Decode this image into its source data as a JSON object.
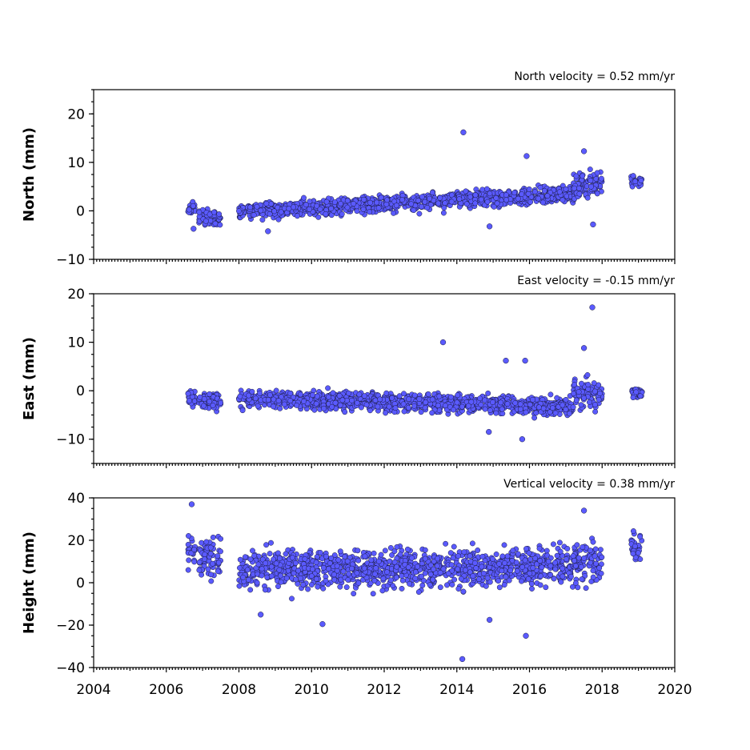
{
  "chart_data": [
    {
      "type": "scatter",
      "panel": "north",
      "ylabel": "North (mm)",
      "velocity_label": "North velocity = 0.52 mm/yr",
      "xlim": [
        2004,
        2020
      ],
      "ylim": [
        -10,
        25
      ],
      "yticks": [
        -10,
        0,
        10,
        20
      ],
      "ytick_labels": [
        "−10",
        "0",
        "10",
        "20"
      ],
      "segments": [
        {
          "x_start": 2006.6,
          "x_end": 2006.8,
          "y_start": 0.5,
          "y_end": 0.5,
          "spread": 1.3
        },
        {
          "x_start": 2006.9,
          "x_end": 2007.5,
          "y_start": -1.5,
          "y_end": -1.5,
          "spread": 1.2
        },
        {
          "x_start": 2008.0,
          "x_end": 2017.2,
          "y_start": 0.0,
          "y_end": 3.5,
          "spread": 1.2
        },
        {
          "x_start": 2017.2,
          "x_end": 2018.0,
          "y_start": 4.5,
          "y_end": 6.0,
          "spread": 2.0
        },
        {
          "x_start": 2018.8,
          "x_end": 2019.1,
          "y_start": 6.2,
          "y_end": 6.2,
          "spread": 0.8
        }
      ],
      "outliers": [
        {
          "x": 2014.18,
          "y": 16.2
        },
        {
          "x": 2015.92,
          "y": 11.3
        },
        {
          "x": 2014.9,
          "y": -3.2
        },
        {
          "x": 2017.5,
          "y": 12.3
        },
        {
          "x": 2017.75,
          "y": -2.8
        },
        {
          "x": 2006.75,
          "y": -3.7
        },
        {
          "x": 2008.8,
          "y": -4.2
        }
      ]
    },
    {
      "type": "scatter",
      "panel": "east",
      "ylabel": "East (mm)",
      "velocity_label": "East velocity = -0.15 mm/yr",
      "xlim": [
        2004,
        2020
      ],
      "ylim": [
        -15,
        20
      ],
      "yticks": [
        -10,
        0,
        10,
        20
      ],
      "ytick_labels": [
        "−10",
        "0",
        "10",
        "20"
      ],
      "segments": [
        {
          "x_start": 2006.6,
          "x_end": 2006.8,
          "y_start": -1.5,
          "y_end": -1.5,
          "spread": 1.2
        },
        {
          "x_start": 2006.9,
          "x_end": 2007.5,
          "y_start": -2.0,
          "y_end": -2.0,
          "spread": 1.3
        },
        {
          "x_start": 2008.0,
          "x_end": 2017.2,
          "y_start": -1.5,
          "y_end": -3.2,
          "spread": 1.3
        },
        {
          "x_start": 2017.2,
          "x_end": 2018.0,
          "y_start": -0.5,
          "y_end": -1.5,
          "spread": 2.0
        },
        {
          "x_start": 2018.8,
          "x_end": 2019.1,
          "y_start": -0.5,
          "y_end": -0.5,
          "spread": 0.8
        }
      ],
      "outliers": [
        {
          "x": 2017.73,
          "y": 17.2
        },
        {
          "x": 2013.62,
          "y": 10.0
        },
        {
          "x": 2017.5,
          "y": 8.8
        },
        {
          "x": 2015.8,
          "y": -10.0
        },
        {
          "x": 2014.88,
          "y": -8.5
        },
        {
          "x": 2015.35,
          "y": 6.2
        },
        {
          "x": 2015.88,
          "y": 6.2
        }
      ]
    },
    {
      "type": "scatter",
      "panel": "vertical",
      "ylabel": "Height (mm)",
      "velocity_label": "Vertical velocity = 0.38 mm/yr",
      "xlim": [
        2004,
        2020
      ],
      "ylim": [
        -40,
        40
      ],
      "yticks": [
        -40,
        -20,
        0,
        20,
        40
      ],
      "ytick_labels": [
        "−40",
        "−20",
        "0",
        "20",
        "40"
      ],
      "xticks": [
        2004,
        2006,
        2008,
        2010,
        2012,
        2014,
        2016,
        2018,
        2020
      ],
      "xtick_labels": [
        "2004",
        "2006",
        "2008",
        "2010",
        "2012",
        "2014",
        "2016",
        "2018",
        "2020"
      ],
      "segments": [
        {
          "x_start": 2006.6,
          "x_end": 2006.8,
          "y_start": 15,
          "y_end": 15,
          "spread": 6
        },
        {
          "x_start": 2006.9,
          "x_end": 2007.5,
          "y_start": 12,
          "y_end": 12,
          "spread": 7
        },
        {
          "x_start": 2008.0,
          "x_end": 2017.2,
          "y_start": 6,
          "y_end": 8,
          "spread": 6.5
        },
        {
          "x_start": 2017.2,
          "x_end": 2018.0,
          "y_start": 10,
          "y_end": 10,
          "spread": 7
        },
        {
          "x_start": 2018.8,
          "x_end": 2019.1,
          "y_start": 17,
          "y_end": 17,
          "spread": 5
        }
      ],
      "outliers": [
        {
          "x": 2006.7,
          "y": 37.0
        },
        {
          "x": 2014.15,
          "y": -36.0
        },
        {
          "x": 2015.9,
          "y": -25.0
        },
        {
          "x": 2010.3,
          "y": -19.5
        },
        {
          "x": 2014.9,
          "y": -17.5
        },
        {
          "x": 2017.5,
          "y": 34.0
        },
        {
          "x": 2008.6,
          "y": -15.0
        }
      ]
    }
  ]
}
